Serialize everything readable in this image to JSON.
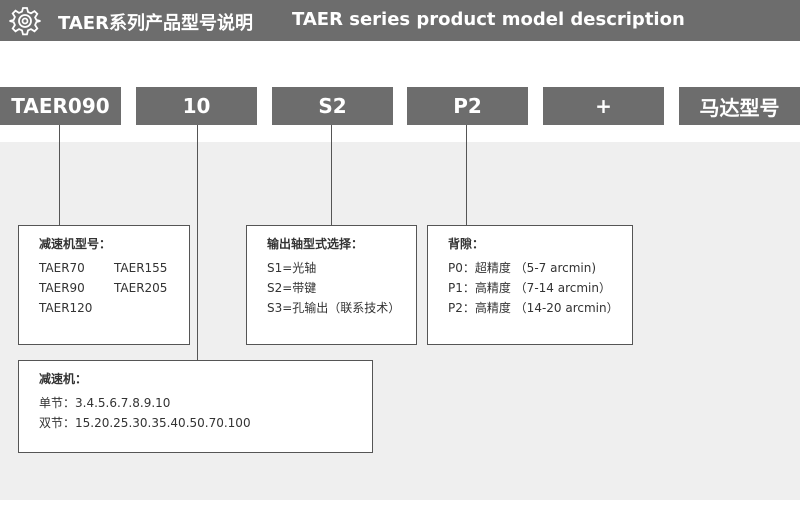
{
  "header": {
    "icon": "gear-icon",
    "title_cn": "TAER系列产品型号说明",
    "title_en": "TAER series product model description"
  },
  "segments": [
    "TAER090",
    "10",
    "S2",
    "P2",
    "+",
    "马达型号"
  ],
  "model_box": {
    "title": "减速机型号：",
    "items": [
      "TAER70",
      "TAER155",
      "TAER90",
      "TAER205",
      "TAER120"
    ]
  },
  "shaft_box": {
    "title": "输出轴型式选择：",
    "items": [
      "S1=光轴",
      "S2=带键",
      "S3=孔输出（联系技术）"
    ]
  },
  "backlash_box": {
    "title": "背隙：",
    "items": [
      "P0：超精度 （5-7 arcmin)",
      "P1：高精度 （7-14 arcmin）",
      "P2：高精度 （14-20 arcmin）"
    ]
  },
  "ratio_box": {
    "title": "减速机：",
    "items": [
      "单节：3.4.5.6.7.8.9.10",
      "双节：15.20.25.30.35.40.50.70.100"
    ]
  }
}
